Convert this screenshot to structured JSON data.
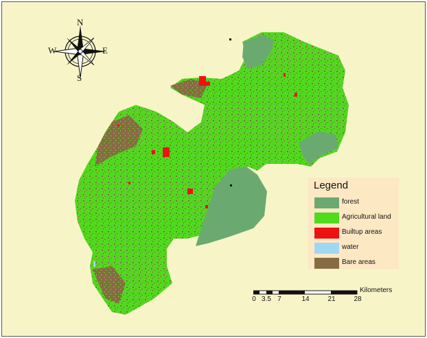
{
  "compass": {
    "north": "N",
    "south": "S",
    "west": "W",
    "east": "E"
  },
  "legend": {
    "title": "Legend",
    "items": [
      {
        "label": "forest",
        "color": "#6aaa70"
      },
      {
        "label": "Agricultural land",
        "color": "#4fdc1a"
      },
      {
        "label": "Builtup areas",
        "color": "#ee1111"
      },
      {
        "label": "water",
        "color": "#9fd8f2"
      },
      {
        "label": "Bare areas",
        "color": "#876b43"
      }
    ]
  },
  "scalebar": {
    "unit": "Kilometers",
    "ticks": [
      "0",
      "3.5",
      "7",
      "14",
      "21",
      "28"
    ]
  },
  "colors": {
    "background": "#f7f5c8",
    "forest": "#6aaa70",
    "agricultural": "#4fdc1a",
    "builtup": "#ee1111",
    "water": "#9fd8f2",
    "bare": "#876b43"
  }
}
